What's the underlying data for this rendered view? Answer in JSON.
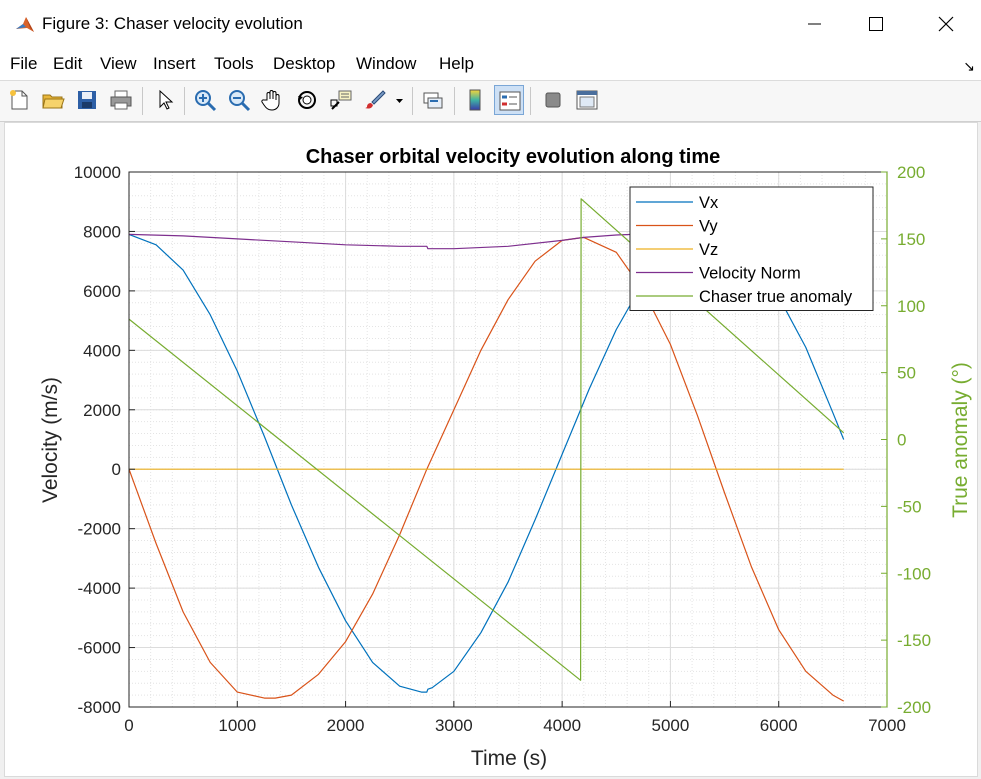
{
  "window": {
    "title": "Figure 3: Chaser velocity evolution",
    "icon": "matlab-icon",
    "controls": [
      "minimize-icon",
      "maximize-icon",
      "close-icon"
    ]
  },
  "menu": [
    "File",
    "Edit",
    "View",
    "Insert",
    "Tools",
    "Desktop",
    "Window",
    "Help"
  ],
  "toolbar": {
    "buttons": [
      "new-figure-icon",
      "open-file-icon",
      "save-icon",
      "print-icon",
      "select-pointer-icon",
      "zoom-in-icon",
      "zoom-out-icon",
      "pan-hand-icon",
      "rotate-3d-icon",
      "data-cursor-icon",
      "brush-icon",
      "link-plot-icon",
      "colorbar-icon",
      "legend-icon",
      "hide-plot-tools-icon",
      "show-plot-tools-icon"
    ]
  },
  "chart_data": {
    "type": "line",
    "title": "Chaser orbital velocity evolution along time",
    "xlabel": "Time (s)",
    "ylabel": "Velocity (m/s)",
    "y2label": "True anomaly (°)",
    "xlim": [
      0,
      7000
    ],
    "ylim": [
      -8000,
      10000
    ],
    "y2lim": [
      -200,
      200
    ],
    "xticks": [
      "0",
      "1000",
      "2000",
      "3000",
      "4000",
      "5000",
      "6000",
      "7000"
    ],
    "yticks": [
      "-8000",
      "-6000",
      "-4000",
      "-2000",
      "0",
      "2000",
      "4000",
      "6000",
      "8000",
      "10000"
    ],
    "y2ticks": [
      "-200",
      "-150",
      "-100",
      "-50",
      "0",
      "50",
      "100",
      "150",
      "200"
    ],
    "grid": true,
    "minor_grid": true,
    "legend_position": "top-right",
    "colors": {
      "Vx": "#0072bd",
      "Vy": "#d95319",
      "Vz": "#edb120",
      "norm": "#7e2f8e",
      "anomaly": "#77ac30",
      "right_axis": "#77ac30"
    },
    "series": [
      {
        "name": "Vx",
        "axis": "left",
        "color": "#0072bd",
        "x": [
          0,
          250,
          500,
          750,
          1000,
          1250,
          1500,
          1750,
          2000,
          2250,
          2500,
          2700,
          2750,
          2760,
          2800,
          3000,
          3250,
          3500,
          3750,
          4000,
          4250,
          4500,
          4750,
          5000,
          5250,
          5500,
          5750,
          6000,
          6250,
          6500,
          6600
        ],
        "y": [
          7900,
          7550,
          6700,
          5200,
          3300,
          1100,
          -1200,
          -3300,
          -5100,
          -6500,
          -7300,
          -7500,
          -7500,
          -7400,
          -7350,
          -6800,
          -5500,
          -3800,
          -1700,
          500,
          2700,
          4700,
          6300,
          7500,
          7900,
          7700,
          7000,
          5800,
          4100,
          1900,
          1000
        ]
      },
      {
        "name": "Vy",
        "axis": "left",
        "color": "#d95319",
        "x": [
          0,
          250,
          500,
          750,
          1000,
          1250,
          1350,
          1500,
          1750,
          2000,
          2250,
          2500,
          2750,
          3000,
          3250,
          3500,
          3750,
          4000,
          4200,
          4500,
          4750,
          5000,
          5250,
          5500,
          5750,
          6000,
          6250,
          6500,
          6600
        ],
        "y": [
          0,
          -2500,
          -4800,
          -6500,
          -7500,
          -7700,
          -7700,
          -7600,
          -6900,
          -5800,
          -4200,
          -2200,
          0,
          2000,
          4000,
          5700,
          7000,
          7700,
          7800,
          7300,
          6000,
          4200,
          1800,
          -800,
          -3300,
          -5400,
          -6800,
          -7600,
          -7800
        ]
      },
      {
        "name": "Vz",
        "axis": "left",
        "color": "#edb120",
        "x": [
          0,
          6600
        ],
        "y": [
          0,
          0
        ]
      },
      {
        "name": "Velocity Norm",
        "axis": "left",
        "color": "#7e2f8e",
        "x": [
          0,
          500,
          1000,
          1500,
          2000,
          2500,
          2750,
          2760,
          3000,
          3500,
          4000,
          4200,
          4500,
          5000,
          5500
        ],
        "y": [
          7900,
          7850,
          7750,
          7650,
          7550,
          7500,
          7500,
          7420,
          7420,
          7500,
          7700,
          7800,
          7880,
          7950,
          7950
        ]
      },
      {
        "name": "Chaser true anomaly",
        "axis": "right",
        "color": "#77ac30",
        "x": [
          0,
          4170,
          4175,
          6600
        ],
        "y": [
          90,
          -180,
          180,
          5
        ]
      }
    ]
  }
}
